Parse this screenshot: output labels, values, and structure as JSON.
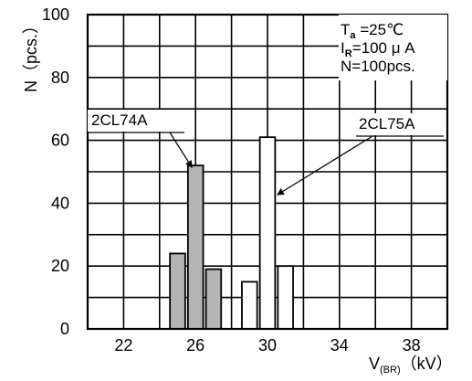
{
  "chart_data": {
    "type": "bar",
    "ylabel": "N（pcs.）",
    "xlabel": "V(BR)（kV）",
    "xlabel_main": "V",
    "xlabel_sub": "(BR)",
    "xlabel_unit": "（kV）",
    "xlim": [
      20,
      40
    ],
    "ylim": [
      0,
      100
    ],
    "x_ticks": [
      22,
      26,
      30,
      34,
      38
    ],
    "y_ticks": [
      0,
      20,
      40,
      60,
      80,
      100
    ],
    "grid": true,
    "conditions": {
      "ta": {
        "main": "T",
        "sub": "a",
        "rest": " =25℃"
      },
      "ir": {
        "main": "I",
        "sub": "R",
        "rest": "=100 μ A"
      },
      "n": {
        "text": "N=100pcs."
      }
    },
    "series": [
      {
        "name": "2CL74A",
        "color": "#b4b4b4",
        "bars": [
          {
            "x0": 24.5,
            "x1": 25.5,
            "value": 24
          },
          {
            "x0": 25.5,
            "x1": 26.5,
            "value": 52
          },
          {
            "x0": 26.5,
            "x1": 27.5,
            "value": 19
          }
        ]
      },
      {
        "name": "2CL75A",
        "color": "#ffffff",
        "bars": [
          {
            "x0": 28.5,
            "x1": 29.5,
            "value": 15
          },
          {
            "x0": 29.5,
            "x1": 30.5,
            "value": 61
          },
          {
            "x0": 30.5,
            "x1": 31.5,
            "value": 20
          }
        ]
      }
    ]
  }
}
